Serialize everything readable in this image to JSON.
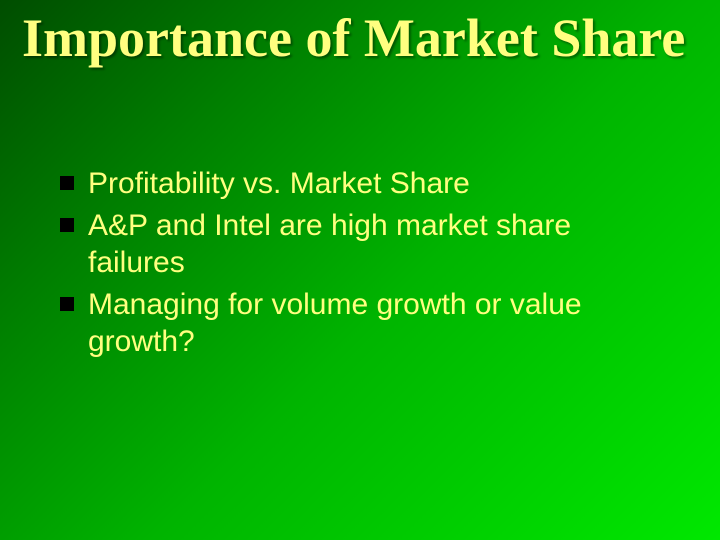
{
  "slide": {
    "title": "Importance of Market Share",
    "bullets": [
      "Profitability vs. Market Share",
      "A&P and Intel are high market share failures",
      "Managing for volume growth or value growth?"
    ],
    "colors": {
      "title_color": "#ffff80",
      "body_color": "#ffff80",
      "bullet_marker": "#000000",
      "bg_gradient_start": "#004d00",
      "bg_gradient_end": "#00e800"
    },
    "typography": {
      "title_font": "Georgia serif bold",
      "title_size_pt": 40,
      "body_font": "Arial sans-serif",
      "body_size_pt": 22
    }
  }
}
